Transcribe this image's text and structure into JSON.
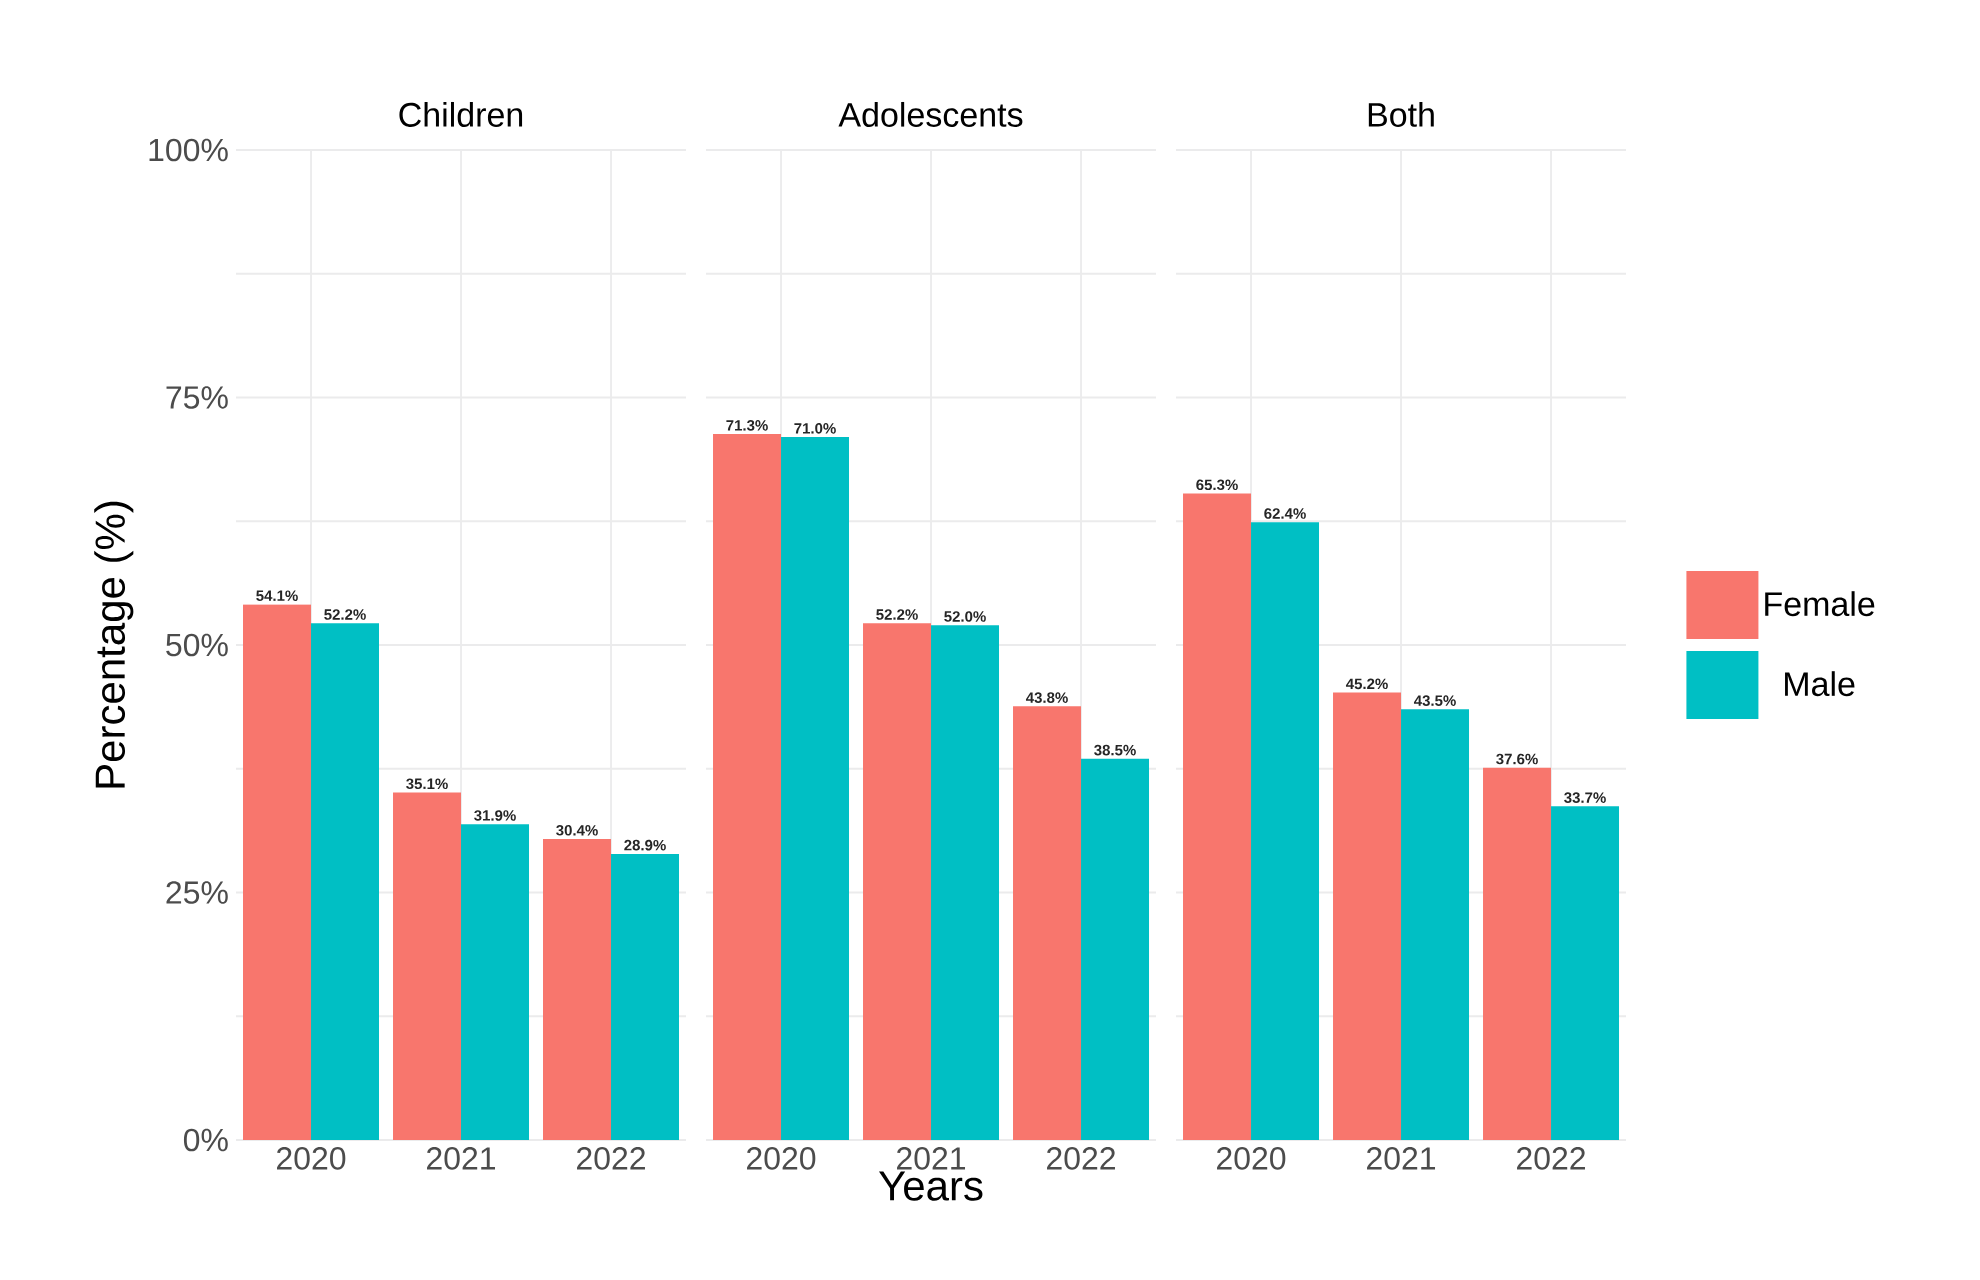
{
  "chart_data": [
    {
      "type": "bar",
      "title": "Children",
      "categories": [
        "2020",
        "2021",
        "2022"
      ],
      "ylabel": "Percentage (%)",
      "ylim": [
        0,
        100
      ],
      "yticks": [
        {
          "value": 0,
          "label": "0%"
        },
        {
          "value": 12.5,
          "label": null
        },
        {
          "value": 25,
          "label": "25%"
        },
        {
          "value": 37.5,
          "label": null
        },
        {
          "value": 50,
          "label": "50%"
        },
        {
          "value": 62.5,
          "label": null
        },
        {
          "value": 75,
          "label": "75%"
        },
        {
          "value": 87.5,
          "label": null
        },
        {
          "value": 100,
          "label": "100%"
        }
      ],
      "grid": true,
      "series": [
        {
          "color": "#f8766d",
          "values": [
            54.1,
            35.1,
            30.4
          ],
          "value_labels": [
            "54.1%",
            "35.1%",
            "30.4%"
          ]
        },
        {
          "color": "#00bfc4",
          "values": [
            52.2,
            31.9,
            28.9
          ],
          "value_labels": [
            "52.2%",
            "31.9%",
            "28.9%"
          ]
        }
      ]
    },
    {
      "type": "bar",
      "title": "Adolescents",
      "categories": [
        "2020",
        "2021",
        "2022"
      ],
      "xlabel": "Years",
      "ylim": [
        0,
        100
      ],
      "yticks": [
        {
          "value": 0,
          "label": null
        },
        {
          "value": 12.5,
          "label": null
        },
        {
          "value": 25,
          "label": null
        },
        {
          "value": 37.5,
          "label": null
        },
        {
          "value": 50,
          "label": null
        },
        {
          "value": 62.5,
          "label": null
        },
        {
          "value": 75,
          "label": null
        },
        {
          "value": 87.5,
          "label": null
        },
        {
          "value": 100,
          "label": null
        }
      ],
      "grid": true,
      "tick_labels": "x",
      "series": [
        {
          "color": "#f8766d",
          "values": [
            71.3,
            52.2,
            43.8
          ],
          "value_labels": [
            "71.3%",
            "52.2%",
            "43.8%"
          ]
        },
        {
          "color": "#00bfc4",
          "values": [
            71.0,
            52.0,
            38.5
          ],
          "value_labels": [
            "71.0%",
            "52.0%",
            "38.5%"
          ]
        }
      ]
    },
    {
      "type": "bar",
      "title": "Both",
      "categories": [
        "2020",
        "2021",
        "2022"
      ],
      "ylim": [
        0,
        100
      ],
      "yticks": [
        {
          "value": 0,
          "label": null
        },
        {
          "value": 12.5,
          "label": null
        },
        {
          "value": 25,
          "label": null
        },
        {
          "value": 37.5,
          "label": null
        },
        {
          "value": 50,
          "label": null
        },
        {
          "value": 62.5,
          "label": null
        },
        {
          "value": 75,
          "label": null
        },
        {
          "value": 87.5,
          "label": null
        },
        {
          "value": 100,
          "label": null
        }
      ],
      "grid": true,
      "tick_labels": "x",
      "legend": "right",
      "series": [
        {
          "name": "Female",
          "color": "#f8766d",
          "values": [
            65.3,
            45.2,
            37.6
          ],
          "value_labels": [
            "65.3%",
            "45.2%",
            "37.6%"
          ]
        },
        {
          "name": "Male",
          "color": "#00bfc4",
          "values": [
            62.4,
            43.5,
            33.7
          ],
          "value_labels": [
            "62.4%",
            "43.5%",
            "33.7%"
          ]
        }
      ]
    }
  ]
}
